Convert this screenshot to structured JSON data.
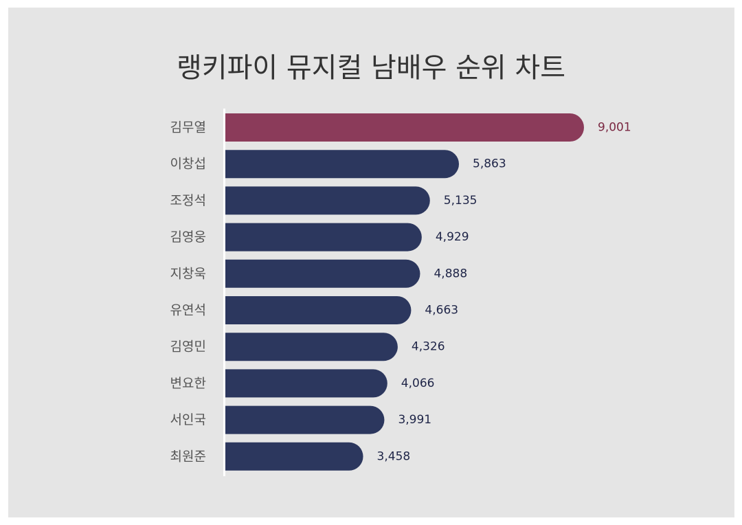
{
  "title": "랭키파이 뮤지컬 남배우 순위 차트",
  "colors": {
    "background": "#e5e5e5",
    "highlight_bar": "#8b3b5a",
    "highlight_label": "#7a2842",
    "bar": "#2c375e",
    "value_label": "#1e2447",
    "category_label": "#555555",
    "axis_line": "#ffffff"
  },
  "chart_data": {
    "type": "bar",
    "orientation": "horizontal",
    "title": "랭키파이 뮤지컬 남배우 순위 차트",
    "xlabel": "",
    "ylabel": "",
    "categories": [
      "김무열",
      "이창섭",
      "조정석",
      "김영웅",
      "지창욱",
      "유연석",
      "김영민",
      "변요한",
      "서인국",
      "최원준"
    ],
    "values": [
      9001,
      5863,
      5135,
      4929,
      4888,
      4663,
      4326,
      4066,
      3991,
      3458
    ],
    "value_labels": [
      "9,001",
      "5,863",
      "5,135",
      "4,929",
      "4,888",
      "4,663",
      "4,326",
      "4,066",
      "3,991",
      "3,458"
    ],
    "highlight_index": 0,
    "grid": false,
    "legend": "none"
  }
}
